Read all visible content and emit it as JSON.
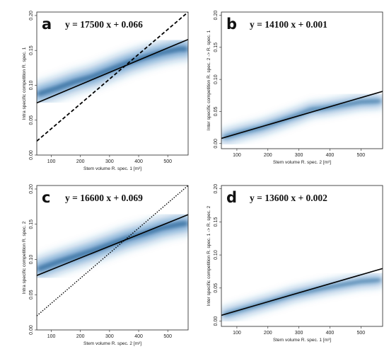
{
  "chart_data": [
    {
      "type": "scatter",
      "panel": "a",
      "annotation": "y = 17500 x + 0.066",
      "xlabel": "Stem volume R. spec. 1 [m³]",
      "ylabel": "Intra specific competition R. spec. 1",
      "xlim": [
        50,
        570
      ],
      "ylim": [
        0,
        0.205
      ],
      "xticks": [
        "100",
        "200",
        "300",
        "400",
        "500"
      ],
      "yticks": [
        "0.00",
        "0.05",
        "0.10",
        "0.15",
        "0.20"
      ],
      "fit_line": {
        "slope": 0.000175,
        "intercept": 0.066
      },
      "reference_line": {
        "style": "dashed",
        "x": [
          50,
          570
        ],
        "y": [
          0.02,
          0.205
        ]
      },
      "density": {
        "x": [
          60,
          120,
          180,
          240,
          300,
          360,
          420,
          480,
          540,
          560
        ],
        "y": [
          0.088,
          0.096,
          0.105,
          0.112,
          0.122,
          0.132,
          0.14,
          0.147,
          0.152,
          0.152
        ],
        "spread": 0.012
      }
    },
    {
      "type": "scatter",
      "panel": "b",
      "annotation": "y = 14100 x + 0.001",
      "xlabel": "Stem volume R. spec. 2 [m³]",
      "ylabel": "Inter specific competition R. spec. 2 -> R. spec. 1",
      "xlim": [
        50,
        570
      ],
      "ylim": [
        -0.008,
        0.205
      ],
      "xticks": [
        "100",
        "200",
        "300",
        "400",
        "500"
      ],
      "yticks": [
        "0.00",
        "0.05",
        "0.10",
        "0.15",
        "0.20"
      ],
      "fit_line": {
        "slope": 0.000141,
        "intercept": 0.001
      },
      "reference_line": null,
      "density": {
        "x": [
          60,
          120,
          180,
          240,
          300,
          340,
          380,
          440,
          500,
          560
        ],
        "y": [
          0.01,
          0.018,
          0.025,
          0.035,
          0.045,
          0.053,
          0.055,
          0.06,
          0.065,
          0.066
        ],
        "spread": 0.008
      }
    },
    {
      "type": "scatter",
      "panel": "c",
      "annotation": "y = 16600 x + 0.069",
      "xlabel": "Stem volume R. spec. 2 [m³]",
      "ylabel": "Intra specific competition R. spec. 2",
      "xlim": [
        50,
        570
      ],
      "ylim": [
        0,
        0.205
      ],
      "xticks": [
        "100",
        "200",
        "300",
        "400",
        "500"
      ],
      "yticks": [
        "0.00",
        "0.05",
        "0.10",
        "0.15",
        "0.20"
      ],
      "fit_line": {
        "slope": 0.000166,
        "intercept": 0.069
      },
      "reference_line": {
        "style": "dotted",
        "x": [
          50,
          570
        ],
        "y": [
          0.02,
          0.205
        ]
      },
      "density": {
        "x": [
          60,
          120,
          180,
          240,
          300,
          360,
          420,
          480,
          540,
          560
        ],
        "y": [
          0.087,
          0.096,
          0.104,
          0.112,
          0.121,
          0.13,
          0.137,
          0.145,
          0.15,
          0.151
        ],
        "spread": 0.012
      }
    },
    {
      "type": "scatter",
      "panel": "d",
      "annotation": "y = 13600 x + 0.002",
      "xlabel": "Stem volume R. spec. 1 [m³]",
      "ylabel": "Inter specific competition R. spec. 1 -> R. spec. 2",
      "xlim": [
        50,
        570
      ],
      "ylim": [
        -0.008,
        0.205
      ],
      "xticks": [
        "100",
        "200",
        "300",
        "400",
        "500"
      ],
      "yticks": [
        "0.00",
        "0.05",
        "0.10",
        "0.15",
        "0.20"
      ],
      "fit_line": {
        "slope": 0.000136,
        "intercept": 0.002
      },
      "reference_line": null,
      "density": {
        "x": [
          60,
          120,
          180,
          240,
          280,
          320,
          380,
          440,
          500,
          560
        ],
        "y": [
          0.01,
          0.018,
          0.026,
          0.034,
          0.04,
          0.044,
          0.05,
          0.055,
          0.06,
          0.062
        ],
        "spread": 0.007
      }
    }
  ],
  "colors": {
    "density": "#1f6fb5",
    "line": "#000000",
    "frame": "#222222"
  }
}
